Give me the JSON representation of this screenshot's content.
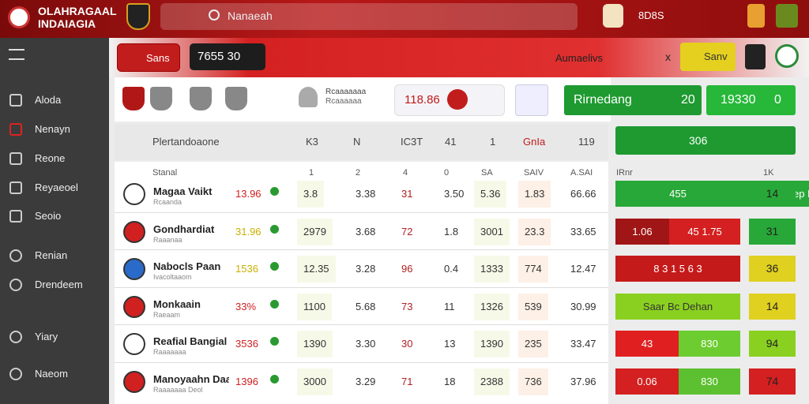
{
  "header": {
    "logo_line1": "OLAHRAGAAL",
    "logo_line2": "INDAIAGIA",
    "search": "Nanaeah",
    "right_text": "8D8S"
  },
  "sidebar": [
    "Aloda",
    "Nenayn",
    "Reone",
    "Reyaeoel",
    "Seoio",
    "Renian",
    "Drendeem",
    "Yiary",
    "Naeom"
  ],
  "toolbar": {
    "button": "Sans",
    "search": "7655 30",
    "label": "Aumaelivs",
    "close": "x",
    "action": "Sanv"
  },
  "match": {
    "title": "Rcaaaaaaa",
    "subtitle": "Rcaaaaaa",
    "score": "118.86",
    "green1_label": "Rirnedang",
    "green1_value": "20",
    "green2_label": "19330",
    "green2_value": "0"
  },
  "summary": {
    "label": "Plertandoaone",
    "values": [
      "K3",
      "N",
      "IC3T",
      "41",
      "1",
      "GnIa",
      "119"
    ],
    "green": "306"
  },
  "table": {
    "columns": [
      "Stanal",
      "1",
      "2",
      "4",
      "0",
      "SA",
      "SAIV",
      "A.SAI",
      "IRnr",
      "1K"
    ],
    "rows": [
      [
        "Magaa Vaikt",
        "Rcaanda",
        "13.96",
        "3.8",
        "3.38",
        "31",
        "3.50",
        "5.36",
        "1.83",
        "66.66",
        [
          "455",
          "Peltep Mirie"
        ],
        "14"
      ],
      [
        "Gondhardiat",
        "Raaanaa",
        "31.96",
        "2979",
        "3.68",
        "72",
        "1.8",
        "3001",
        "23.3",
        "33.65",
        [
          "1.06",
          "45 1.75"
        ],
        "31"
      ],
      [
        "Nabocls Paan",
        "Ivacoltaaom",
        "1536",
        "12.35",
        "3.28",
        "96",
        "0.4",
        "1333",
        "774",
        "12.47",
        [
          "8 3 1 5 6 3"
        ],
        "36"
      ],
      [
        "Monkaain",
        "Raeaam",
        "33%",
        "1100",
        "5.68",
        "73",
        "11",
        "1326",
        "539",
        "30.99",
        [
          "Saar Bc Dehan"
        ],
        "14"
      ],
      [
        "Reafial Bangial",
        "Raaaaaaa",
        "3536",
        "1390",
        "3.30",
        "30",
        "13",
        "1390",
        "235",
        "33.47",
        [
          "43",
          "830"
        ],
        "94"
      ],
      [
        "Manoyaahn Daal",
        "Raaaaaaa Deol",
        "1396",
        "3000",
        "3.29",
        "71",
        "18",
        "2388",
        "736",
        "37.96",
        [
          "0.06",
          "830"
        ],
        "74"
      ]
    ]
  }
}
